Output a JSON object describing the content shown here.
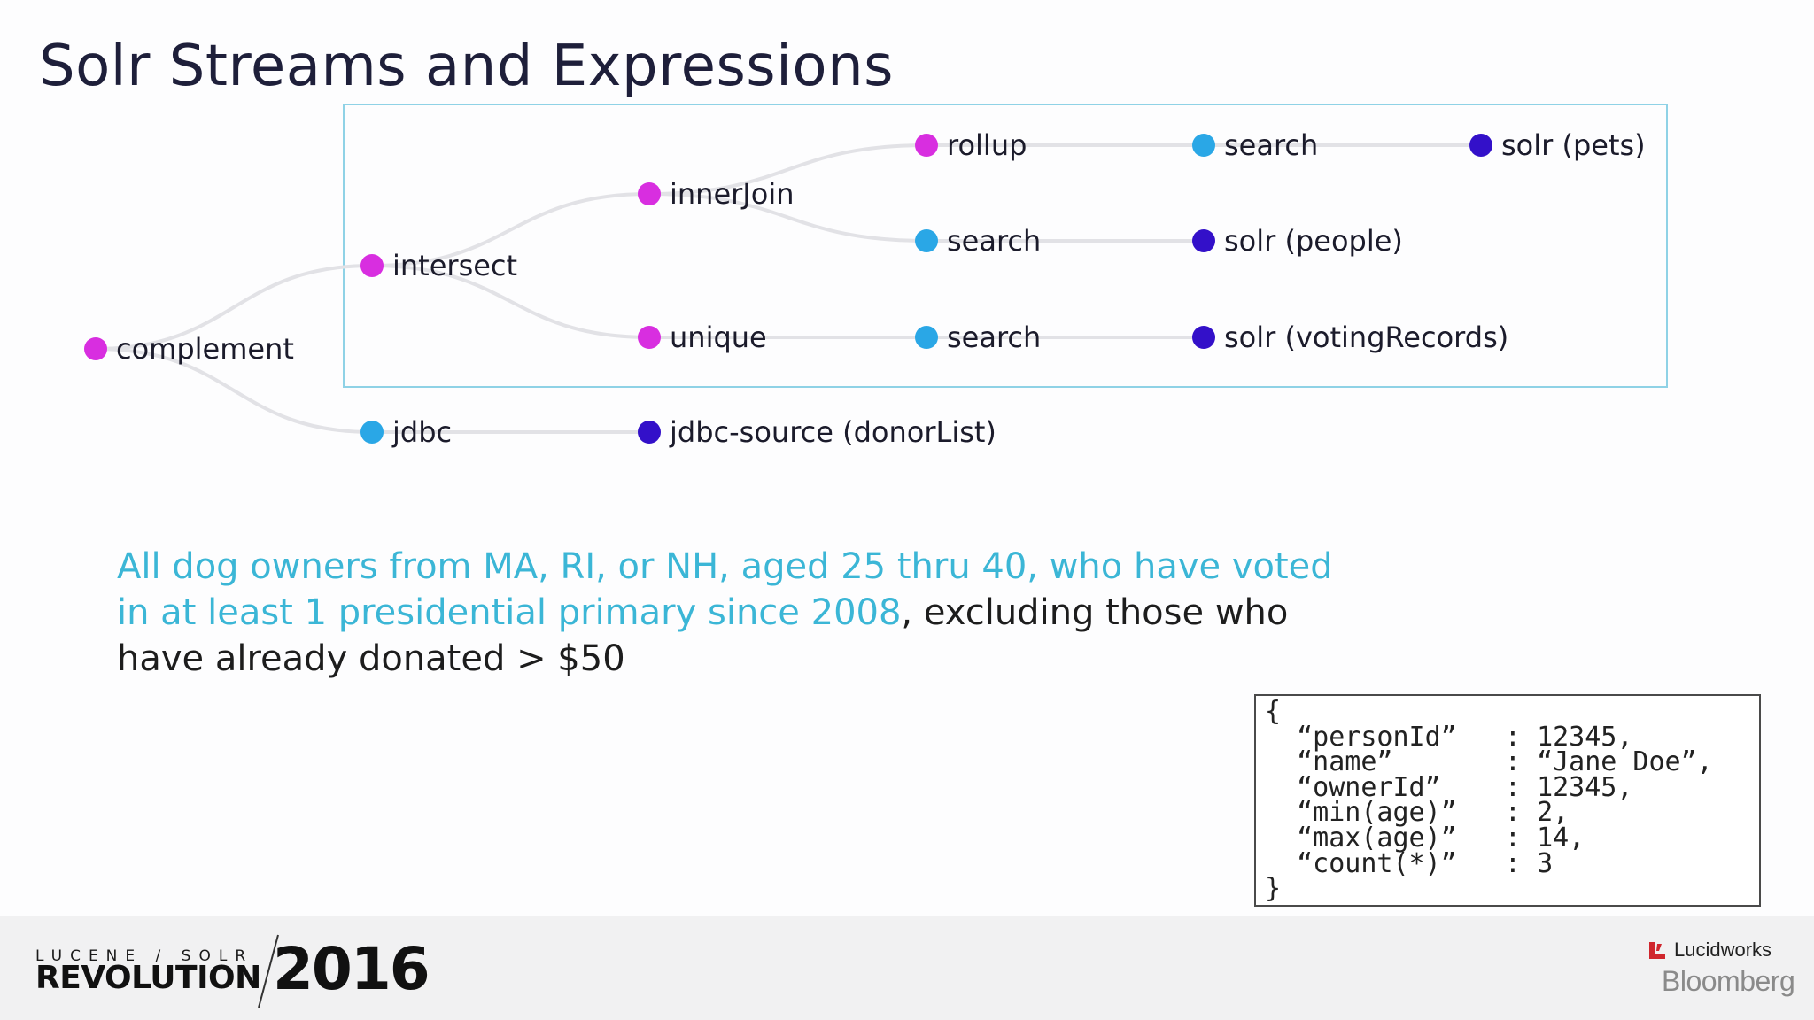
{
  "slide": {
    "title": "Solr Streams and Expressions",
    "caption_highlight": "All dog owners from MA, RI, or NH, aged 25 thru 40, who have voted in at least 1 presidential primary since 2008",
    "caption_rest": ", excluding those who have already donated > $50"
  },
  "colors": {
    "decorator": "#d82ee0",
    "search": "#2aa7e6",
    "source": "#3310c9",
    "highlight_text": "#3bb6d6",
    "box_border": "#8fd2e6"
  },
  "tree": {
    "nodes": [
      {
        "id": "complement",
        "label": "complement",
        "kind": "decorator"
      },
      {
        "id": "intersect",
        "label": "intersect",
        "kind": "decorator"
      },
      {
        "id": "jdbc",
        "label": "jdbc",
        "kind": "search"
      },
      {
        "id": "innerJoin",
        "label": "innerJoin",
        "kind": "decorator"
      },
      {
        "id": "unique",
        "label": "unique",
        "kind": "decorator"
      },
      {
        "id": "jdbc-source",
        "label": "jdbc-source (donorList)",
        "kind": "source"
      },
      {
        "id": "rollup",
        "label": "rollup",
        "kind": "decorator"
      },
      {
        "id": "search-people",
        "label": "search",
        "kind": "search"
      },
      {
        "id": "search-voting",
        "label": "search",
        "kind": "search"
      },
      {
        "id": "search-pets",
        "label": "search",
        "kind": "search"
      },
      {
        "id": "solr-people",
        "label": "solr (people)",
        "kind": "source"
      },
      {
        "id": "solr-voting",
        "label": "solr (votingRecords)",
        "kind": "source"
      },
      {
        "id": "solr-pets",
        "label": "solr (pets)",
        "kind": "source"
      }
    ],
    "edges": [
      [
        "complement",
        "intersect"
      ],
      [
        "complement",
        "jdbc"
      ],
      [
        "intersect",
        "innerJoin"
      ],
      [
        "intersect",
        "unique"
      ],
      [
        "jdbc",
        "jdbc-source"
      ],
      [
        "innerJoin",
        "rollup"
      ],
      [
        "innerJoin",
        "search-people"
      ],
      [
        "unique",
        "search-voting"
      ],
      [
        "rollup",
        "search-pets"
      ],
      [
        "search-pets",
        "solr-pets"
      ],
      [
        "search-people",
        "solr-people"
      ],
      [
        "search-voting",
        "solr-voting"
      ]
    ]
  },
  "code_sample": {
    "open": "{",
    "close": "}",
    "rows": [
      {
        "key": "“personId”",
        "value": "12345,"
      },
      {
        "key": "“name”",
        "value": "“Jane Doe”,"
      },
      {
        "key": "“ownerId”",
        "value": "12345,"
      },
      {
        "key": "“min(age)”",
        "value": "2,"
      },
      {
        "key": "“max(age)”",
        "value": "14,"
      },
      {
        "key": "“count(*)”",
        "value": "3"
      }
    ]
  },
  "footer": {
    "conference_top": "LUCENE / SOLR",
    "conference_bottom": "REVOLUTION",
    "year": "2016",
    "sponsor_1": "Lucidworks",
    "sponsor_2": "Bloomberg"
  }
}
